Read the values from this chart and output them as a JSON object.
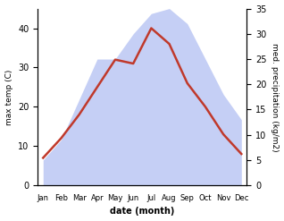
{
  "months": [
    "Jan",
    "Feb",
    "Mar",
    "Apr",
    "May",
    "Jun",
    "Jul",
    "Aug",
    "Sep",
    "Oct",
    "Nov",
    "Dec"
  ],
  "temp": [
    7,
    12,
    18,
    25,
    32,
    31,
    40,
    36,
    26,
    20,
    13,
    8
  ],
  "precip": [
    5,
    9,
    17,
    25,
    25,
    30,
    34,
    35,
    32,
    25,
    18,
    13
  ],
  "temp_color": "#c0392b",
  "precip_fill_color": "#c5cff5",
  "temp_ylim": [
    0,
    45
  ],
  "precip_ylim": [
    0,
    35
  ],
  "xlabel": "date (month)",
  "ylabel_left": "max temp (C)",
  "ylabel_right": "med. precipitation (kg/m2)",
  "temp_yticks": [
    0,
    10,
    20,
    30,
    40
  ],
  "precip_yticks": [
    0,
    5,
    10,
    15,
    20,
    25,
    30,
    35
  ]
}
